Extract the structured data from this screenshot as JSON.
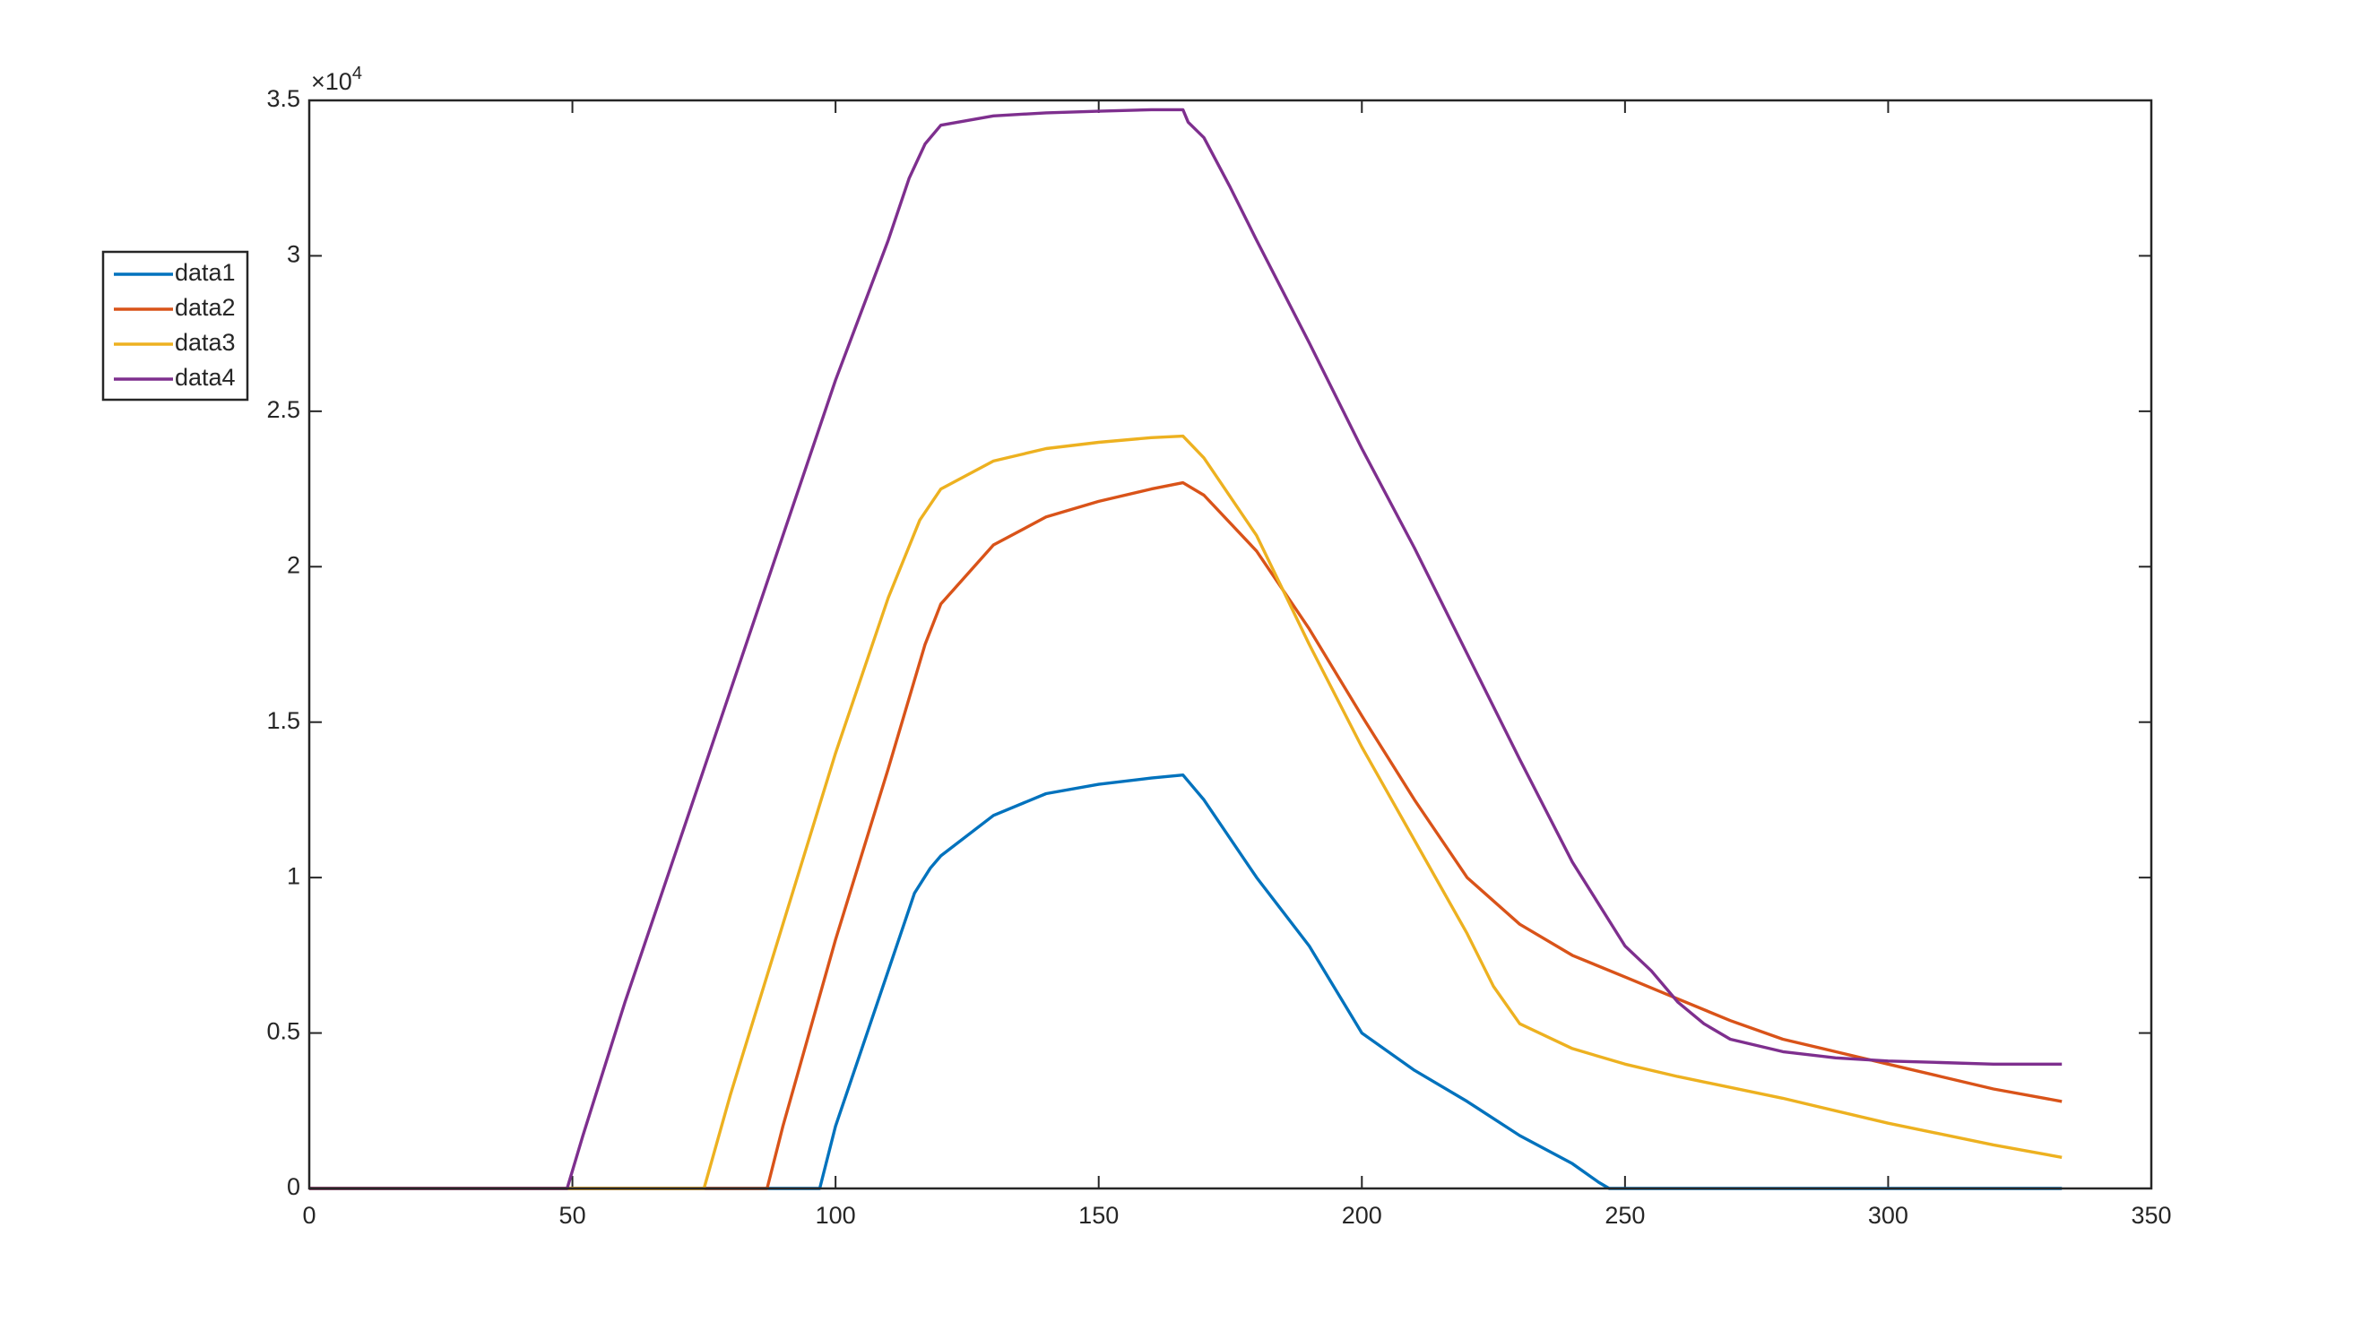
{
  "chart_data": {
    "type": "line",
    "y_multiplier": "×10",
    "y_multiplier_exponent": "4",
    "xlim": [
      0,
      350
    ],
    "xticks": [
      0,
      50,
      100,
      150,
      200,
      250,
      300,
      350
    ],
    "ylim": [
      0,
      3.5
    ],
    "yticks": [
      0,
      0.5,
      1,
      1.5,
      2,
      2.5,
      3,
      3.5
    ],
    "legend": "west-outside",
    "box": true,
    "series": [
      {
        "name": "data1",
        "color": "#0072BD",
        "x": [
          0,
          97,
          100,
          105,
          110,
          115,
          118,
          120,
          130,
          140,
          150,
          160,
          166,
          170,
          180,
          190,
          200,
          210,
          220,
          230,
          240,
          245,
          247,
          333
        ],
        "values": [
          0,
          0,
          0.2,
          0.45,
          0.7,
          0.95,
          1.03,
          1.07,
          1.2,
          1.27,
          1.3,
          1.32,
          1.33,
          1.25,
          1.0,
          0.78,
          0.5,
          0.38,
          0.28,
          0.17,
          0.08,
          0.02,
          0,
          0
        ]
      },
      {
        "name": "data2",
        "color": "#D95319",
        "x": [
          0,
          87,
          90,
          100,
          110,
          117,
          120,
          130,
          140,
          150,
          160,
          166,
          170,
          180,
          190,
          200,
          210,
          220,
          230,
          240,
          250,
          260,
          270,
          280,
          290,
          300,
          310,
          320,
          333
        ],
        "values": [
          0,
          0,
          0.2,
          0.8,
          1.35,
          1.75,
          1.88,
          2.07,
          2.16,
          2.21,
          2.25,
          2.27,
          2.23,
          2.05,
          1.8,
          1.52,
          1.25,
          1.0,
          0.85,
          0.75,
          0.68,
          0.61,
          0.54,
          0.48,
          0.44,
          0.4,
          0.36,
          0.32,
          0.28
        ]
      },
      {
        "name": "data3",
        "color": "#EDB120",
        "x": [
          0,
          75,
          80,
          90,
          100,
          110,
          116,
          120,
          130,
          140,
          150,
          160,
          166,
          170,
          180,
          190,
          200,
          210,
          220,
          225,
          230,
          240,
          250,
          260,
          280,
          300,
          320,
          333
        ],
        "values": [
          0,
          0,
          0.3,
          0.85,
          1.4,
          1.9,
          2.15,
          2.25,
          2.34,
          2.38,
          2.4,
          2.415,
          2.42,
          2.35,
          2.1,
          1.75,
          1.42,
          1.12,
          0.82,
          0.65,
          0.53,
          0.45,
          0.4,
          0.36,
          0.29,
          0.21,
          0.14,
          0.1
        ]
      },
      {
        "name": "data4",
        "color": "#7E2F8E",
        "x": [
          0,
          49,
          52,
          60,
          70,
          80,
          90,
          100,
          110,
          114,
          117,
          120,
          130,
          140,
          150,
          160,
          166,
          167,
          170,
          175,
          180,
          190,
          200,
          210,
          220,
          230,
          240,
          250,
          255,
          260,
          265,
          270,
          280,
          290,
          300,
          310,
          320,
          333
        ],
        "values": [
          0,
          0,
          0.17,
          0.6,
          1.1,
          1.6,
          2.1,
          2.6,
          3.05,
          3.25,
          3.36,
          3.42,
          3.45,
          3.46,
          3.465,
          3.47,
          3.47,
          3.43,
          3.38,
          3.22,
          3.05,
          2.72,
          2.38,
          2.06,
          1.72,
          1.38,
          1.05,
          0.78,
          0.7,
          0.6,
          0.53,
          0.48,
          0.44,
          0.42,
          0.41,
          0.405,
          0.4,
          0.4
        ]
      }
    ]
  }
}
